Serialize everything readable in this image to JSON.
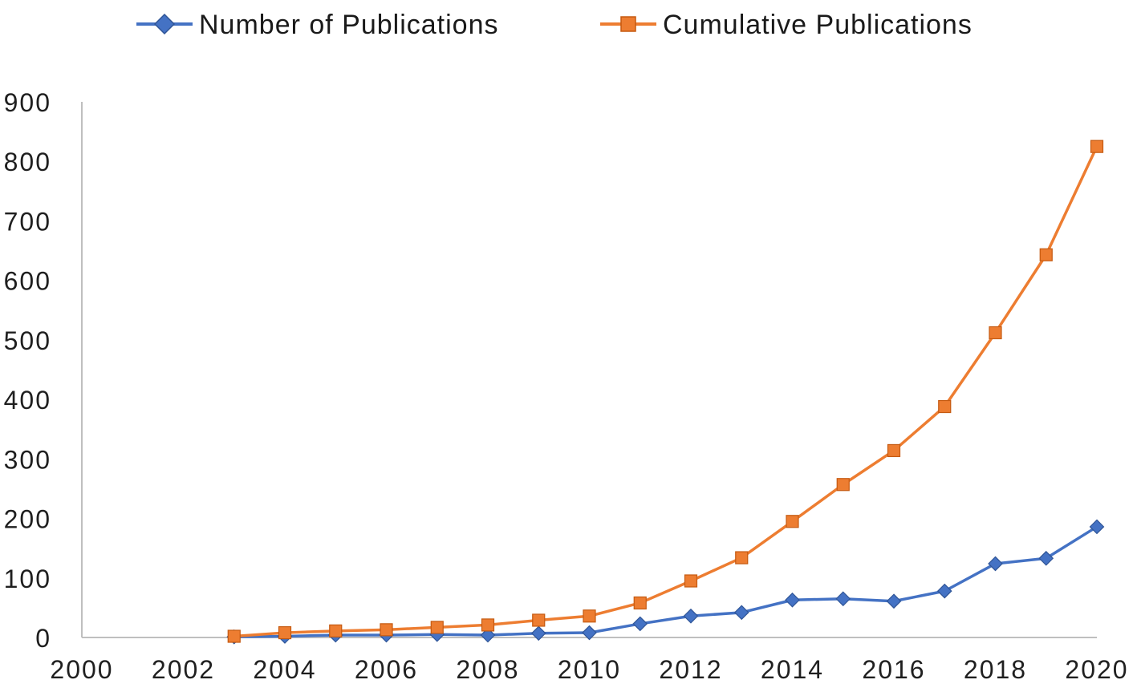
{
  "figure": {
    "background": "#FFFFFF",
    "axis_line_color": "#BFBFBF",
    "text_color": "#1F1F1F"
  },
  "chart_data": {
    "type": "line",
    "title": "",
    "xlabel": "",
    "ylabel": "",
    "x": [
      2003,
      2004,
      2005,
      2006,
      2007,
      2008,
      2009,
      2010,
      2011,
      2012,
      2013,
      2014,
      2015,
      2016,
      2017,
      2018,
      2019,
      2020
    ],
    "series": [
      {
        "name": "Number of Publications",
        "marker": "diamond",
        "color": "#4472C4",
        "marker_border": "#2F5597",
        "values": [
          1,
          2,
          4,
          4,
          5,
          4,
          7,
          8,
          23,
          36,
          42,
          63,
          65,
          61,
          78,
          124,
          133,
          186
        ]
      },
      {
        "name": "Cumulative Publications",
        "marker": "square",
        "color": "#ED7D31",
        "marker_border": "#C55A11",
        "values": [
          2,
          8,
          11,
          13,
          17,
          21,
          29,
          36,
          58,
          95,
          134,
          195,
          257,
          314,
          388,
          512,
          643,
          825
        ]
      }
    ],
    "xlim": [
      2000,
      2020
    ],
    "ylim": [
      0,
      900
    ],
    "xticks": [
      2000,
      2002,
      2004,
      2006,
      2008,
      2010,
      2012,
      2014,
      2016,
      2018,
      2020
    ],
    "yticks": [
      0,
      100,
      200,
      300,
      400,
      500,
      600,
      700,
      800,
      900
    ],
    "grid": false,
    "legend_position": "top"
  }
}
